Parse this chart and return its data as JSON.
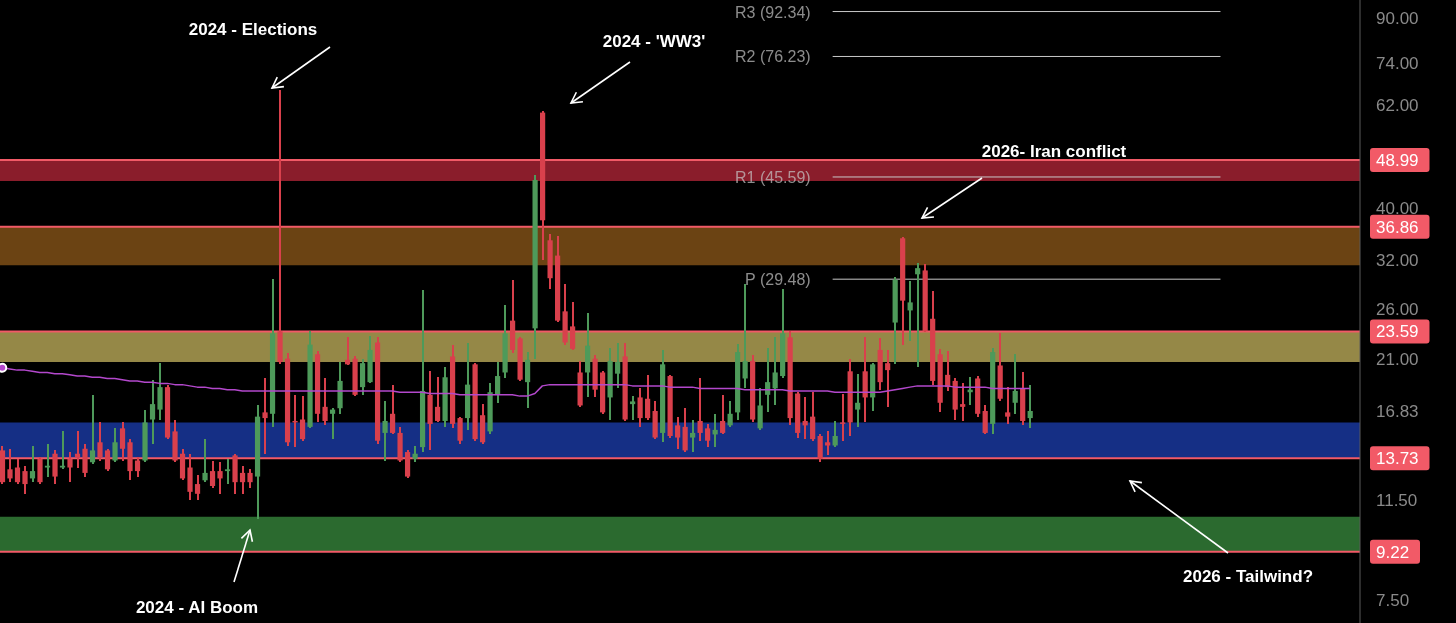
{
  "chart_data": {
    "type": "candlestick",
    "log": true,
    "tick_labels": "y",
    "categories": [
      null,
      null,
      null,
      null,
      null,
      null,
      null,
      null,
      null,
      null,
      null,
      null,
      null,
      null,
      null,
      null,
      null,
      null,
      null,
      null,
      null,
      null,
      null,
      null,
      null,
      null,
      null,
      null,
      null,
      null,
      null,
      null,
      null,
      null,
      null,
      null,
      null,
      null,
      null,
      null,
      null,
      null,
      null,
      null,
      null,
      null,
      null,
      null,
      null,
      null,
      null,
      null,
      null,
      null,
      null,
      null,
      null,
      null,
      null,
      null,
      null,
      null,
      null,
      null,
      null,
      null,
      null,
      null,
      null,
      null,
      null,
      null,
      null,
      null,
      null,
      null,
      null,
      null,
      null,
      null,
      null,
      null,
      null,
      null,
      null,
      null,
      null,
      null,
      null,
      null,
      null,
      null,
      null,
      null,
      null,
      null,
      null,
      null,
      null,
      null,
      null,
      null,
      null,
      null,
      null,
      null,
      null,
      null,
      null,
      null,
      null,
      null,
      null,
      null,
      null,
      null,
      null,
      null,
      null,
      null,
      null,
      null,
      null,
      null,
      null,
      null,
      null,
      null,
      null,
      null,
      null,
      null,
      null,
      null,
      null,
      null,
      null,
      null
    ],
    "ohlc": [
      [
        14.2,
        14.5,
        12.3,
        12.4
      ],
      [
        13.1,
        14.3,
        12.4,
        12.6
      ],
      [
        13.2,
        13.7,
        12.3,
        12.4
      ],
      [
        13.0,
        13.3,
        11.8,
        12.3
      ],
      [
        12.6,
        14.5,
        12.4,
        13.0
      ],
      [
        13.7,
        13.8,
        12.3,
        12.4
      ],
      [
        13.2,
        14.6,
        12.7,
        13.3
      ],
      [
        14.0,
        14.2,
        12.3,
        12.7
      ],
      [
        13.2,
        15.4,
        13.1,
        13.3
      ],
      [
        13.7,
        14.1,
        12.4,
        13.2
      ],
      [
        14.0,
        15.4,
        13.2,
        13.8
      ],
      [
        14.3,
        14.6,
        12.7,
        12.9
      ],
      [
        13.5,
        18.0,
        13.4,
        14.2
      ],
      [
        14.7,
        16.0,
        13.6,
        13.8
      ],
      [
        14.2,
        14.3,
        13.0,
        13.1
      ],
      [
        13.6,
        15.6,
        13.5,
        14.7
      ],
      [
        15.6,
        16.0,
        13.6,
        14.3
      ],
      [
        14.7,
        14.9,
        12.5,
        13.0
      ],
      [
        13.6,
        13.8,
        12.7,
        13.0
      ],
      [
        13.6,
        16.9,
        13.5,
        16.0
      ],
      [
        16.2,
        19.2,
        14.6,
        17.3
      ],
      [
        16.9,
        20.6,
        16.2,
        18.6
      ],
      [
        18.6,
        18.8,
        14.9,
        15.0
      ],
      [
        15.4,
        16.2,
        13.5,
        13.6
      ],
      [
        14.0,
        14.3,
        12.5,
        12.6
      ],
      [
        13.2,
        14.0,
        11.5,
        11.9
      ],
      [
        12.3,
        12.8,
        11.5,
        11.8
      ],
      [
        12.5,
        14.9,
        12.4,
        12.9
      ],
      [
        13.0,
        13.6,
        12.1,
        12.2
      ],
      [
        13.0,
        13.5,
        11.8,
        12.6
      ],
      [
        13.0,
        13.7,
        12.3,
        13.1
      ],
      [
        13.9,
        14.0,
        11.8,
        12.4
      ],
      [
        12.9,
        13.3,
        11.8,
        12.4
      ],
      [
        12.9,
        13.1,
        12.1,
        12.4
      ],
      [
        12.7,
        17.2,
        10.6,
        16.4
      ],
      [
        16.7,
        19.3,
        14.0,
        16.3
      ],
      [
        16.6,
        29.5,
        15.7,
        23.4
      ],
      [
        23.6,
        66,
        20.5,
        20.7
      ],
      [
        21.0,
        21.5,
        14.5,
        14.7
      ],
      [
        16.1,
        18.0,
        14.4,
        16.0
      ],
      [
        16.2,
        17.9,
        14.8,
        14.9
      ],
      [
        15.7,
        23.6,
        15.6,
        22.3
      ],
      [
        21.4,
        21.7,
        16.0,
        16.6
      ],
      [
        17.1,
        19.3,
        15.8,
        16.1
      ],
      [
        16.6,
        17.0,
        14.9,
        16.9
      ],
      [
        17.0,
        20.7,
        16.6,
        19.1
      ],
      [
        20.9,
        23.0,
        20.4,
        20.5
      ],
      [
        21.0,
        21.2,
        17.9,
        18.0
      ],
      [
        18.6,
        21.0,
        18.0,
        20.6
      ],
      [
        19.0,
        23.1,
        18.9,
        21.8
      ],
      [
        22.5,
        23.0,
        14.6,
        14.8
      ],
      [
        15.3,
        17.5,
        13.6,
        16.1
      ],
      [
        16.6,
        18.8,
        15.2,
        15.3
      ],
      [
        15.3,
        15.7,
        13.5,
        13.6
      ],
      [
        14.1,
        14.2,
        12.6,
        12.7
      ],
      [
        13.7,
        14.5,
        13.5,
        14.0
      ],
      [
        14.4,
        28.2,
        14.1,
        18.3
      ],
      [
        18.0,
        19.9,
        14.2,
        15.9
      ],
      [
        17.1,
        19.4,
        16.0,
        16.1
      ],
      [
        16.1,
        20.3,
        15.7,
        19.4
      ],
      [
        21.2,
        22.3,
        15.6,
        15.9
      ],
      [
        16.3,
        16.4,
        14.6,
        14.8
      ],
      [
        16.3,
        22.5,
        15.5,
        18.8
      ],
      [
        20.5,
        20.6,
        14.8,
        14.9
      ],
      [
        16.5,
        17.3,
        14.6,
        14.7
      ],
      [
        15.4,
        18.9,
        15.2,
        18.2
      ],
      [
        18.0,
        20.7,
        17.4,
        19.5
      ],
      [
        19.8,
        26.4,
        19.3,
        23.4
      ],
      [
        24.7,
        29.4,
        21.5,
        21.8
      ],
      [
        22.9,
        23.0,
        19.1,
        19.2
      ],
      [
        19.0,
        21.6,
        17.0,
        20.9
      ],
      [
        23.9,
        46,
        21.0,
        45
      ],
      [
        60.0,
        60.5,
        32.0,
        37.9
      ],
      [
        34.8,
        35.8,
        28.3,
        29.6
      ],
      [
        32.6,
        35.5,
        24.6,
        24.7
      ],
      [
        25.7,
        28.9,
        22.3,
        22.5
      ],
      [
        24.1,
        26.7,
        21.8,
        21.9
      ],
      [
        19.8,
        20.8,
        17.1,
        17.2
      ],
      [
        19.8,
        25.5,
        17.8,
        22.2
      ],
      [
        21.0,
        21.3,
        17.8,
        18.4
      ],
      [
        19.8,
        19.9,
        16.6,
        16.7
      ],
      [
        17.8,
        22.0,
        16.2,
        20.8
      ],
      [
        19.7,
        22.5,
        18.5,
        20.7
      ],
      [
        21.2,
        22.5,
        16.1,
        16.2
      ],
      [
        17.3,
        17.9,
        16.2,
        17.5
      ],
      [
        17.8,
        18.5,
        15.7,
        16.3
      ],
      [
        17.7,
        19.6,
        16.2,
        16.3
      ],
      [
        16.8,
        17.5,
        14.9,
        15.0
      ],
      [
        15.3,
        21.8,
        14.7,
        20.5
      ],
      [
        19.5,
        19.6,
        15.0,
        15.1
      ],
      [
        15.8,
        16.4,
        14.3,
        15.0
      ],
      [
        15.7,
        17.0,
        14.1,
        14.2
      ],
      [
        15.0,
        16.2,
        14.1,
        15.3
      ],
      [
        16.1,
        19.3,
        14.8,
        15.3
      ],
      [
        15.6,
        15.9,
        14.4,
        14.8
      ],
      [
        15.2,
        16.6,
        14.4,
        15.5
      ],
      [
        16.1,
        18.0,
        15.2,
        15.3
      ],
      [
        15.8,
        17.5,
        15.7,
        16.6
      ],
      [
        16.7,
        22.4,
        16.2,
        21.6
      ],
      [
        19.3,
        28.9,
        18.5,
        20.8
      ],
      [
        20.8,
        21.3,
        16.0,
        16.2
      ],
      [
        15.6,
        18.5,
        15.5,
        17.2
      ],
      [
        18.0,
        22.0,
        16.7,
        19.0
      ],
      [
        18.5,
        23.0,
        17.2,
        19.8
      ],
      [
        19.5,
        28.3,
        19.3,
        23.4
      ],
      [
        23.0,
        23.6,
        15.8,
        16.3
      ],
      [
        18.1,
        18.2,
        15.0,
        15.3
      ],
      [
        16.1,
        17.8,
        14.9,
        15.8
      ],
      [
        16.4,
        18.2,
        14.8,
        14.9
      ],
      [
        15.1,
        15.2,
        13.5,
        13.7
      ],
      [
        14.7,
        15.4,
        13.9,
        14.5
      ],
      [
        14.5,
        16.1,
        14.4,
        15.1
      ],
      [
        16.0,
        18.1,
        14.8,
        15.9
      ],
      [
        19.9,
        21.0,
        15.1,
        16.0
      ],
      [
        16.9,
        19.7,
        15.7,
        17.4
      ],
      [
        19.9,
        23.0,
        16.0,
        17.8
      ],
      [
        17.8,
        20.6,
        16.8,
        20.5
      ],
      [
        21.8,
        22.9,
        18.4,
        19.0
      ],
      [
        20.6,
        21.8,
        17.1,
        20.0
      ],
      [
        24.5,
        29.7,
        20.5,
        29.4
      ],
      [
        35.1,
        35.3,
        22.3,
        26.9
      ],
      [
        25.8,
        29.2,
        22.6,
        26.7
      ],
      [
        30.1,
        31.6,
        20.3,
        30.9
      ],
      [
        30.6,
        31.4,
        23.5,
        23.6
      ],
      [
        24.9,
        28.0,
        18.8,
        19.1
      ],
      [
        21.4,
        21.9,
        16.7,
        17.4
      ],
      [
        19.6,
        21.7,
        18.3,
        18.6
      ],
      [
        19.1,
        19.3,
        16.2,
        16.9
      ],
      [
        17.3,
        18.9,
        16.1,
        17.1
      ],
      [
        18.2,
        19.4,
        17.2,
        18.4
      ],
      [
        19.3,
        19.5,
        16.4,
        16.6
      ],
      [
        16.8,
        17.2,
        15.2,
        15.3
      ],
      [
        15.9,
        22.0,
        15.2,
        21.6
      ],
      [
        20.4,
        23.4,
        17.5,
        17.7
      ],
      [
        16.7,
        18.6,
        15.9,
        16.4
      ],
      [
        17.4,
        21.4,
        16.6,
        18.3
      ],
      [
        18.5,
        19.8,
        15.8,
        16.1
      ],
      [
        16.3,
        18.8,
        15.6,
        16.8
      ]
    ],
    "colors": [
      "#d9404c",
      "#d9404c",
      "#d9404c",
      "#d9404c",
      "#4e9a5a",
      "#d9404c",
      "#4e9a5a",
      "#d9404c",
      "#4e9a5a",
      "#d9404c",
      "#d9404c",
      "#d9404c",
      "#4e9a5a",
      "#d9404c",
      "#d9404c",
      "#4e9a5a",
      "#d9404c",
      "#d9404c",
      "#d9404c",
      "#4e9a5a",
      "#4e9a5a",
      "#4e9a5a",
      "#d9404c",
      "#d9404c",
      "#d9404c",
      "#d9404c",
      "#d9404c",
      "#4e9a5a",
      "#d9404c",
      "#d9404c",
      "#4e9a5a",
      "#d9404c",
      "#d9404c",
      "#d9404c",
      "#4e9a5a",
      "#d9404c",
      "#4e9a5a",
      "#d9404c",
      "#d9404c",
      "#d9404c",
      "#d9404c",
      "#4e9a5a",
      "#d9404c",
      "#d9404c",
      "#4e9a5a",
      "#4e9a5a",
      "#d9404c",
      "#d9404c",
      "#4e9a5a",
      "#4e9a5a",
      "#d9404c",
      "#4e9a5a",
      "#d9404c",
      "#d9404c",
      "#d9404c",
      "#4e9a5a",
      "#4e9a5a",
      "#d9404c",
      "#d9404c",
      "#4e9a5a",
      "#d9404c",
      "#d9404c",
      "#4e9a5a",
      "#d9404c",
      "#d9404c",
      "#4e9a5a",
      "#4e9a5a",
      "#4e9a5a",
      "#d9404c",
      "#d9404c",
      "#4e9a5a",
      "#4e9a5a",
      "#d9404c",
      "#d9404c",
      "#d9404c",
      "#d9404c",
      "#d9404c",
      "#d9404c",
      "#4e9a5a",
      "#d9404c",
      "#d9404c",
      "#4e9a5a",
      "#4e9a5a",
      "#d9404c",
      "#4e9a5a",
      "#d9404c",
      "#d9404c",
      "#d9404c",
      "#4e9a5a",
      "#d9404c",
      "#d9404c",
      "#d9404c",
      "#4e9a5a",
      "#d9404c",
      "#d9404c",
      "#4e9a5a",
      "#d9404c",
      "#4e9a5a",
      "#4e9a5a",
      "#4e9a5a",
      "#d9404c",
      "#4e9a5a",
      "#4e9a5a",
      "#4e9a5a",
      "#4e9a5a",
      "#d9404c",
      "#d9404c",
      "#d9404c",
      "#d9404c",
      "#d9404c",
      "#d9404c",
      "#4e9a5a",
      "#d9404c",
      "#d9404c",
      "#4e9a5a",
      "#d9404c",
      "#4e9a5a",
      "#d9404c",
      "#d9404c",
      "#4e9a5a",
      "#d9404c",
      "#4e9a5a",
      "#4e9a5a",
      "#d9404c",
      "#d9404c",
      "#d9404c",
      "#d9404c",
      "#d9404c",
      "#d9404c",
      "#4e9a5a",
      "#d9404c",
      "#d9404c",
      "#4e9a5a",
      "#d9404c",
      "#d9404c",
      "#4e9a5a",
      "#d9404c",
      "#4e9a5a"
    ],
    "series": [
      {
        "type": "line",
        "color": "#b348cc",
        "values": [
          20.2,
          20.1,
          20.0,
          20.0,
          19.9,
          19.8,
          19.8,
          19.7,
          19.7,
          19.6,
          19.5,
          19.5,
          19.4,
          19.4,
          19.3,
          19.3,
          19.2,
          19.1,
          19.1,
          19.0,
          19.0,
          18.9,
          18.9,
          18.8,
          18.8,
          18.7,
          18.6,
          18.6,
          18.5,
          18.5,
          18.4,
          18.4,
          18.3,
          18.3,
          18.3,
          18.3,
          18.3,
          18.3,
          18.3,
          18.3,
          18.3,
          18.3,
          18.3,
          18.3,
          18.3,
          18.3,
          18.3,
          18.3,
          18.3,
          18.3,
          18.3,
          18.3,
          18.3,
          18.2,
          18.2,
          18.2,
          18.2,
          18.1,
          18.1,
          18.1,
          18.1,
          18.0,
          18.0,
          18.0,
          18.0,
          18.0,
          18.0,
          18.0,
          18.0,
          17.9,
          17.9,
          18.1,
          18.7,
          18.8,
          18.8,
          18.8,
          18.8,
          18.8,
          18.8,
          18.8,
          18.8,
          18.8,
          18.8,
          18.8,
          18.7,
          18.7,
          18.7,
          18.7,
          18.7,
          18.6,
          18.6,
          18.6,
          18.6,
          18.5,
          18.5,
          18.5,
          18.5,
          18.5,
          18.5,
          18.4,
          18.4,
          18.4,
          18.4,
          18.4,
          18.4,
          18.3,
          18.3,
          18.3,
          18.3,
          18.3,
          18.3,
          18.2,
          18.2,
          18.2,
          18.2,
          18.2,
          18.2,
          18.2,
          18.3,
          18.4,
          18.5,
          18.6,
          18.7,
          18.7,
          18.7,
          18.7,
          18.7,
          18.6,
          18.6,
          18.6,
          18.6,
          18.6,
          18.5,
          18.5,
          18.5,
          18.5,
          18.5,
          18.5
        ]
      }
    ],
    "ylim": [
      6.8,
      97
    ],
    "yticks": [
      {
        "value": 90,
        "label": "90.00"
      },
      {
        "value": 74,
        "label": "74.00"
      },
      {
        "value": 62,
        "label": "62.00"
      },
      48.99,
      {
        "value": 40,
        "label": "40.00"
      },
      36.86,
      {
        "value": 32,
        "label": "32.00"
      },
      {
        "value": 26,
        "label": "26.00"
      },
      23.59,
      {
        "value": 21,
        "label": "21.00"
      },
      16.83,
      13.73,
      {
        "value": 11.5,
        "label": "11.50"
      },
      9.22,
      {
        "value": 7.5,
        "label": "7.50"
      }
    ],
    "bands": [
      {
        "axis": "y",
        "from": 44.8,
        "to": 48.99,
        "color": "#8a1d2b"
      },
      {
        "axis": "y",
        "from": 31.3,
        "to": 36.86,
        "color": "#6b4313"
      },
      {
        "axis": "y",
        "from": 20.7,
        "to": 23.59,
        "color": "#958847"
      },
      {
        "axis": "y",
        "from": 13.73,
        "to": 16.0,
        "color": "#152f85"
      },
      {
        "axis": "y",
        "from": 9.22,
        "to": 10.7,
        "color": "#2b6a2f"
      }
    ],
    "ref_lines": [
      {
        "axis": "y",
        "value": 92.34,
        "label": "R3 (92.34)",
        "color": "#c8c8c8"
      },
      {
        "axis": "y",
        "value": 76.23,
        "label": "R2 (76.23)",
        "color": "#c8c8c8"
      },
      {
        "axis": "y",
        "value": 45.59,
        "label": "R1 (45.59)",
        "color": "#c8c8c8"
      },
      {
        "axis": "y",
        "value": 29.48,
        "label": "P (29.48)",
        "color": "#c8c8c8"
      },
      {
        "axis": "y",
        "value": 48.99,
        "color": "#f25a67"
      },
      {
        "axis": "y",
        "value": 36.86,
        "color": "#f25a67"
      },
      {
        "axis": "y",
        "value": 23.59,
        "color": "#f25a67"
      },
      {
        "axis": "y",
        "value": 13.73,
        "color": "#f25a67"
      },
      {
        "axis": "y",
        "value": 9.22,
        "color": "#f25a67"
      }
    ],
    "annotations": [
      "2024 - Elections",
      "2024 - 'WW3'",
      "2026- Iran conflict",
      "2024 - AI Boom",
      "2026 - Tailwind?"
    ]
  }
}
